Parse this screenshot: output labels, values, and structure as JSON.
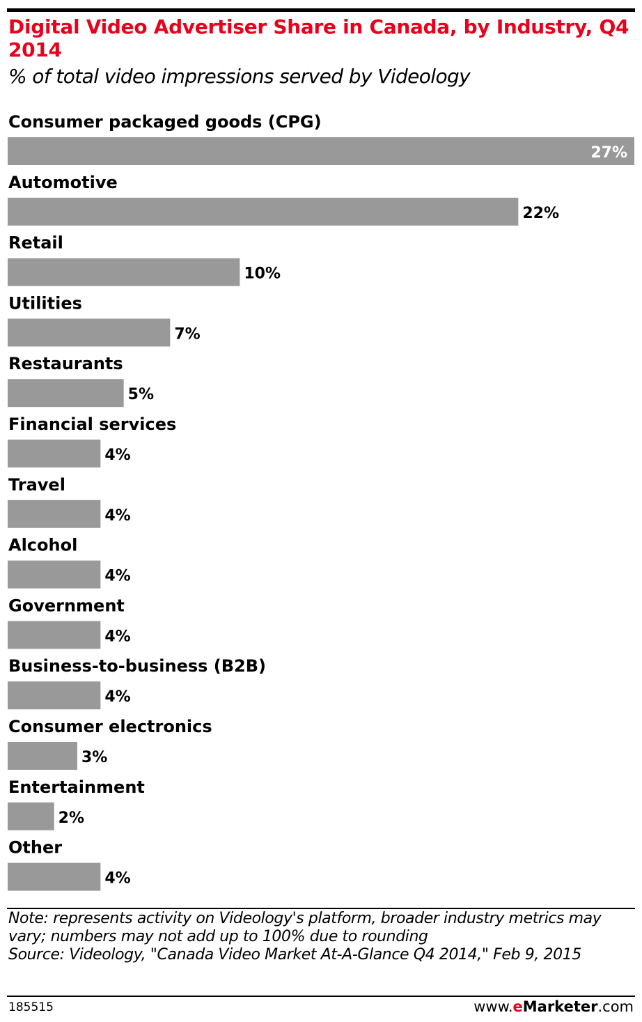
{
  "chart_data": {
    "type": "bar",
    "orientation": "horizontal",
    "title": "Digital Video Advertiser Share in Canada, by Industry, Q4 2014",
    "subtitle": "% of total video impressions served by Videology",
    "categories": [
      "Consumer packaged goods (CPG)",
      "Automotive",
      "Retail",
      "Utilities",
      "Restaurants",
      "Financial services",
      "Travel",
      "Alcohol",
      "Government",
      "Business-to-business (B2B)",
      "Consumer electronics",
      "Entertainment",
      "Other"
    ],
    "values": [
      27,
      22,
      10,
      7,
      5,
      4,
      4,
      4,
      4,
      4,
      3,
      2,
      4
    ],
    "value_labels": [
      "27%",
      "22%",
      "10%",
      "7%",
      "5%",
      "4%",
      "4%",
      "4%",
      "4%",
      "4%",
      "3%",
      "2%",
      "4%"
    ],
    "unit": "%",
    "xlim": [
      0,
      27
    ],
    "grid": false,
    "legend": "none",
    "bar_color": "#999999",
    "title_color": "#e8001c"
  },
  "notes": {
    "note": "Note: represents activity on Videology's platform, broader industry metrics may vary; numbers may not add up to 100% due to rounding",
    "source": "Source: Videology, \"Canada Video Market At-A-Glance Q4 2014,\" Feb 9, 2015"
  },
  "footer": {
    "chart_id": "185515",
    "brand_prefix": "www.",
    "brand_e": "e",
    "brand_name": "Marketer",
    "brand_suffix": ".com"
  }
}
